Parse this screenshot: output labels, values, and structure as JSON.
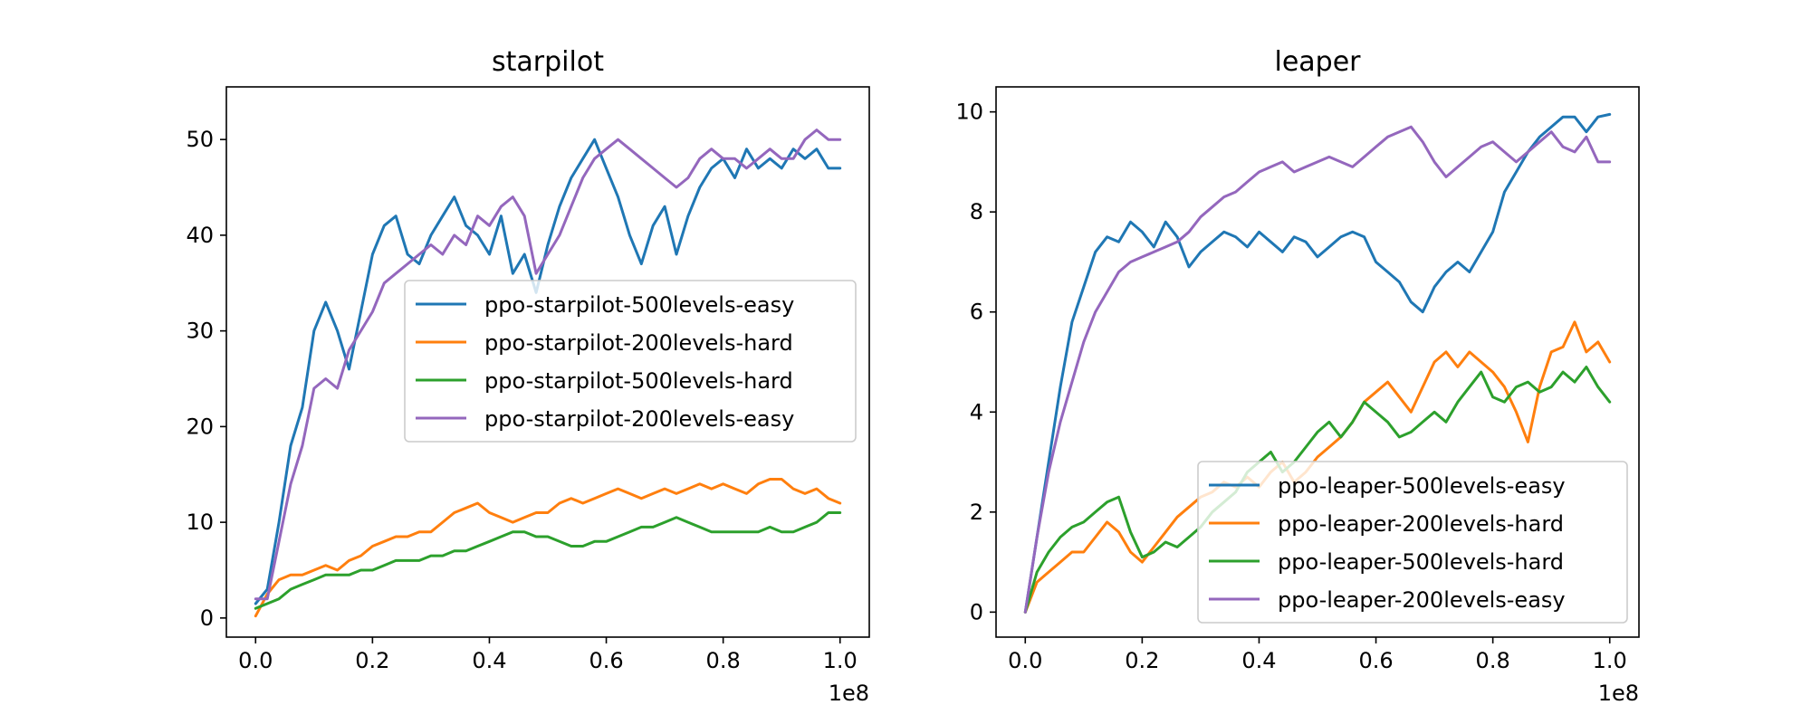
{
  "chart_data": [
    {
      "type": "line",
      "title": "starpilot",
      "xlabel": "",
      "ylabel": "",
      "x_offset_label": "1e8",
      "xlim": [
        -0.05,
        1.05
      ],
      "ylim": [
        -2,
        55.5
      ],
      "xticks": [
        0.0,
        0.2,
        0.4,
        0.6,
        0.8,
        1.0
      ],
      "xtick_labels": [
        "0.0",
        "0.2",
        "0.4",
        "0.6",
        "0.8",
        "1.0"
      ],
      "yticks": [
        0,
        10,
        20,
        30,
        40,
        50
      ],
      "ytick_labels": [
        "0",
        "10",
        "20",
        "30",
        "40",
        "50"
      ],
      "grid": false,
      "legend_position": "center-right",
      "series": [
        {
          "name": "ppo-starpilot-500levels-easy",
          "color": "#1f77b4",
          "x": [
            0.0,
            0.02,
            0.04,
            0.06,
            0.08,
            0.1,
            0.12,
            0.14,
            0.16,
            0.18,
            0.2,
            0.22,
            0.24,
            0.26,
            0.28,
            0.3,
            0.32,
            0.34,
            0.36,
            0.38,
            0.4,
            0.42,
            0.44,
            0.46,
            0.48,
            0.5,
            0.52,
            0.54,
            0.56,
            0.58,
            0.6,
            0.62,
            0.64,
            0.66,
            0.68,
            0.7,
            0.72,
            0.74,
            0.76,
            0.78,
            0.8,
            0.82,
            0.84,
            0.86,
            0.88,
            0.9,
            0.92,
            0.94,
            0.96,
            0.98,
            1.0
          ],
          "y": [
            1.5,
            3,
            10,
            18,
            22,
            30,
            33,
            30,
            26,
            32,
            38,
            41,
            42,
            38,
            37,
            40,
            42,
            44,
            41,
            40,
            38,
            42,
            36,
            38,
            34,
            39,
            43,
            46,
            48,
            50,
            47,
            44,
            40,
            37,
            41,
            43,
            38,
            42,
            45,
            47,
            48,
            46,
            49,
            47,
            48,
            47,
            49,
            48,
            49,
            47,
            47
          ]
        },
        {
          "name": "ppo-starpilot-200levels-hard",
          "color": "#ff7f0e",
          "x": [
            0.0,
            0.02,
            0.04,
            0.06,
            0.08,
            0.1,
            0.12,
            0.14,
            0.16,
            0.18,
            0.2,
            0.22,
            0.24,
            0.26,
            0.28,
            0.3,
            0.32,
            0.34,
            0.36,
            0.38,
            0.4,
            0.42,
            0.44,
            0.46,
            0.48,
            0.5,
            0.52,
            0.54,
            0.56,
            0.58,
            0.6,
            0.62,
            0.64,
            0.66,
            0.68,
            0.7,
            0.72,
            0.74,
            0.76,
            0.78,
            0.8,
            0.82,
            0.84,
            0.86,
            0.88,
            0.9,
            0.92,
            0.94,
            0.96,
            0.98,
            1.0
          ],
          "y": [
            0.2,
            2.5,
            4,
            4.5,
            4.5,
            5,
            5.5,
            5,
            6,
            6.5,
            7.5,
            8,
            8.5,
            8.5,
            9,
            9,
            10,
            11,
            11.5,
            12,
            11,
            10.5,
            10,
            10.5,
            11,
            11,
            12,
            12.5,
            12,
            12.5,
            13,
            13.5,
            13,
            12.5,
            13,
            13.5,
            13,
            13.5,
            14,
            13.5,
            14,
            13.5,
            13,
            14,
            14.5,
            14.5,
            13.5,
            13,
            13.5,
            12.5,
            12
          ]
        },
        {
          "name": "ppo-starpilot-500levels-hard",
          "color": "#2ca02c",
          "x": [
            0.0,
            0.02,
            0.04,
            0.06,
            0.08,
            0.1,
            0.12,
            0.14,
            0.16,
            0.18,
            0.2,
            0.22,
            0.24,
            0.26,
            0.28,
            0.3,
            0.32,
            0.34,
            0.36,
            0.38,
            0.4,
            0.42,
            0.44,
            0.46,
            0.48,
            0.5,
            0.52,
            0.54,
            0.56,
            0.58,
            0.6,
            0.62,
            0.64,
            0.66,
            0.68,
            0.7,
            0.72,
            0.74,
            0.76,
            0.78,
            0.8,
            0.82,
            0.84,
            0.86,
            0.88,
            0.9,
            0.92,
            0.94,
            0.96,
            0.98,
            1.0
          ],
          "y": [
            1,
            1.5,
            2,
            3,
            3.5,
            4,
            4.5,
            4.5,
            4.5,
            5,
            5,
            5.5,
            6,
            6,
            6,
            6.5,
            6.5,
            7,
            7,
            7.5,
            8,
            8.5,
            9,
            9,
            8.5,
            8.5,
            8,
            7.5,
            7.5,
            8,
            8,
            8.5,
            9,
            9.5,
            9.5,
            10,
            10.5,
            10,
            9.5,
            9,
            9,
            9,
            9,
            9,
            9.5,
            9,
            9,
            9.5,
            10,
            11,
            11
          ]
        },
        {
          "name": "ppo-starpilot-200levels-easy",
          "color": "#9467bd",
          "x": [
            0.0,
            0.02,
            0.04,
            0.06,
            0.08,
            0.1,
            0.12,
            0.14,
            0.16,
            0.18,
            0.2,
            0.22,
            0.24,
            0.26,
            0.28,
            0.3,
            0.32,
            0.34,
            0.36,
            0.38,
            0.4,
            0.42,
            0.44,
            0.46,
            0.48,
            0.5,
            0.52,
            0.54,
            0.56,
            0.58,
            0.6,
            0.62,
            0.64,
            0.66,
            0.68,
            0.7,
            0.72,
            0.74,
            0.76,
            0.78,
            0.8,
            0.82,
            0.84,
            0.86,
            0.88,
            0.9,
            0.92,
            0.94,
            0.96,
            0.98,
            1.0
          ],
          "y": [
            2,
            2,
            8,
            14,
            18,
            24,
            25,
            24,
            28,
            30,
            32,
            35,
            36,
            37,
            38,
            39,
            38,
            40,
            39,
            42,
            41,
            43,
            44,
            42,
            36,
            38,
            40,
            43,
            46,
            48,
            49,
            50,
            49,
            48,
            47,
            46,
            45,
            46,
            48,
            49,
            48,
            48,
            47,
            48,
            49,
            48,
            48,
            50,
            51,
            50,
            50
          ]
        }
      ]
    },
    {
      "type": "line",
      "title": "leaper",
      "xlabel": "",
      "ylabel": "",
      "x_offset_label": "1e8",
      "xlim": [
        -0.05,
        1.05
      ],
      "ylim": [
        -0.5,
        10.5
      ],
      "xticks": [
        0.0,
        0.2,
        0.4,
        0.6,
        0.8,
        1.0
      ],
      "xtick_labels": [
        "0.0",
        "0.2",
        "0.4",
        "0.6",
        "0.8",
        "1.0"
      ],
      "yticks": [
        0,
        2,
        4,
        6,
        8,
        10
      ],
      "ytick_labels": [
        "0",
        "2",
        "4",
        "6",
        "8",
        "10"
      ],
      "grid": false,
      "legend_position": "lower-right",
      "series": [
        {
          "name": "ppo-leaper-500levels-easy",
          "color": "#1f77b4",
          "x": [
            0.0,
            0.02,
            0.04,
            0.06,
            0.08,
            0.1,
            0.12,
            0.14,
            0.16,
            0.18,
            0.2,
            0.22,
            0.24,
            0.26,
            0.28,
            0.3,
            0.32,
            0.34,
            0.36,
            0.38,
            0.4,
            0.42,
            0.44,
            0.46,
            0.48,
            0.5,
            0.52,
            0.54,
            0.56,
            0.58,
            0.6,
            0.62,
            0.64,
            0.66,
            0.68,
            0.7,
            0.72,
            0.74,
            0.76,
            0.78,
            0.8,
            0.82,
            0.84,
            0.86,
            0.88,
            0.9,
            0.92,
            0.94,
            0.96,
            0.98,
            1.0
          ],
          "y": [
            0,
            1.5,
            3,
            4.5,
            5.8,
            6.5,
            7.2,
            7.5,
            7.4,
            7.8,
            7.6,
            7.3,
            7.8,
            7.5,
            6.9,
            7.2,
            7.4,
            7.6,
            7.5,
            7.3,
            7.6,
            7.4,
            7.2,
            7.5,
            7.4,
            7.1,
            7.3,
            7.5,
            7.6,
            7.5,
            7.0,
            6.8,
            6.6,
            6.2,
            6.0,
            6.5,
            6.8,
            7.0,
            6.8,
            7.2,
            7.6,
            8.4,
            8.8,
            9.2,
            9.5,
            9.7,
            9.9,
            9.9,
            9.6,
            9.9,
            9.95
          ]
        },
        {
          "name": "ppo-leaper-200levels-hard",
          "color": "#ff7f0e",
          "x": [
            0.0,
            0.02,
            0.04,
            0.06,
            0.08,
            0.1,
            0.12,
            0.14,
            0.16,
            0.18,
            0.2,
            0.22,
            0.24,
            0.26,
            0.28,
            0.3,
            0.32,
            0.34,
            0.36,
            0.38,
            0.4,
            0.42,
            0.44,
            0.46,
            0.48,
            0.5,
            0.52,
            0.54,
            0.56,
            0.58,
            0.6,
            0.62,
            0.64,
            0.66,
            0.68,
            0.7,
            0.72,
            0.74,
            0.76,
            0.78,
            0.8,
            0.82,
            0.84,
            0.86,
            0.88,
            0.9,
            0.92,
            0.94,
            0.96,
            0.98,
            1.0
          ],
          "y": [
            0,
            0.6,
            0.8,
            1.0,
            1.2,
            1.2,
            1.5,
            1.8,
            1.6,
            1.2,
            1.0,
            1.3,
            1.6,
            1.9,
            2.1,
            2.3,
            2.4,
            2.6,
            2.5,
            2.7,
            2.5,
            2.8,
            3.0,
            2.6,
            2.8,
            3.1,
            3.3,
            3.5,
            3.8,
            4.2,
            4.4,
            4.6,
            4.3,
            4.0,
            4.5,
            5.0,
            5.2,
            4.9,
            5.2,
            5.0,
            4.8,
            4.5,
            4.0,
            3.4,
            4.5,
            5.2,
            5.3,
            5.8,
            5.2,
            5.4,
            5.0
          ]
        },
        {
          "name": "ppo-leaper-500levels-hard",
          "color": "#2ca02c",
          "x": [
            0.0,
            0.02,
            0.04,
            0.06,
            0.08,
            0.1,
            0.12,
            0.14,
            0.16,
            0.18,
            0.2,
            0.22,
            0.24,
            0.26,
            0.28,
            0.3,
            0.32,
            0.34,
            0.36,
            0.38,
            0.4,
            0.42,
            0.44,
            0.46,
            0.48,
            0.5,
            0.52,
            0.54,
            0.56,
            0.58,
            0.6,
            0.62,
            0.64,
            0.66,
            0.68,
            0.7,
            0.72,
            0.74,
            0.76,
            0.78,
            0.8,
            0.82,
            0.84,
            0.86,
            0.88,
            0.9,
            0.92,
            0.94,
            0.96,
            0.98,
            1.0
          ],
          "y": [
            0,
            0.8,
            1.2,
            1.5,
            1.7,
            1.8,
            2.0,
            2.2,
            2.3,
            1.6,
            1.1,
            1.2,
            1.4,
            1.3,
            1.5,
            1.7,
            2.0,
            2.2,
            2.4,
            2.8,
            3.0,
            3.2,
            2.8,
            3.0,
            3.3,
            3.6,
            3.8,
            3.5,
            3.8,
            4.2,
            4.0,
            3.8,
            3.5,
            3.6,
            3.8,
            4.0,
            3.8,
            4.2,
            4.5,
            4.8,
            4.3,
            4.2,
            4.5,
            4.6,
            4.4,
            4.5,
            4.8,
            4.6,
            4.9,
            4.5,
            4.2
          ]
        },
        {
          "name": "ppo-leaper-200levels-easy",
          "color": "#9467bd",
          "x": [
            0.0,
            0.02,
            0.04,
            0.06,
            0.08,
            0.1,
            0.12,
            0.14,
            0.16,
            0.18,
            0.2,
            0.22,
            0.24,
            0.26,
            0.28,
            0.3,
            0.32,
            0.34,
            0.36,
            0.38,
            0.4,
            0.42,
            0.44,
            0.46,
            0.48,
            0.5,
            0.52,
            0.54,
            0.56,
            0.58,
            0.6,
            0.62,
            0.64,
            0.66,
            0.68,
            0.7,
            0.72,
            0.74,
            0.76,
            0.78,
            0.8,
            0.82,
            0.84,
            0.86,
            0.88,
            0.9,
            0.92,
            0.94,
            0.96,
            0.98,
            1.0
          ],
          "y": [
            0,
            1.5,
            2.8,
            3.8,
            4.6,
            5.4,
            6.0,
            6.4,
            6.8,
            7.0,
            7.1,
            7.2,
            7.3,
            7.4,
            7.6,
            7.9,
            8.1,
            8.3,
            8.4,
            8.6,
            8.8,
            8.9,
            9.0,
            8.8,
            8.9,
            9.0,
            9.1,
            9.0,
            8.9,
            9.1,
            9.3,
            9.5,
            9.6,
            9.7,
            9.4,
            9.0,
            8.7,
            8.9,
            9.1,
            9.3,
            9.4,
            9.2,
            9.0,
            9.2,
            9.4,
            9.6,
            9.3,
            9.2,
            9.5,
            9.0,
            9.0
          ]
        }
      ]
    }
  ]
}
